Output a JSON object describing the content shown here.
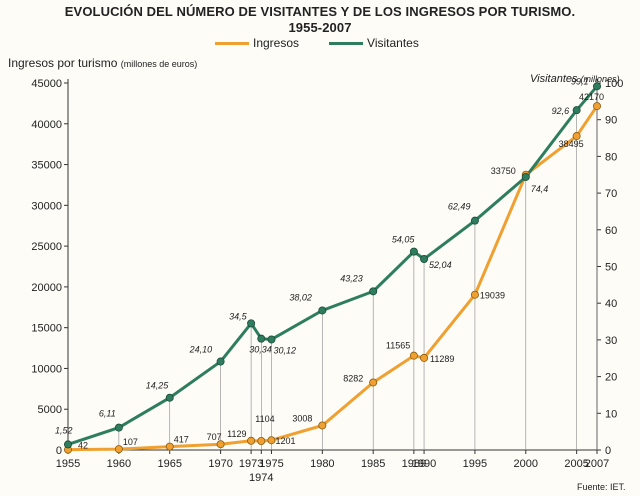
{
  "title_line1": "EVOLUCIÓN DEL NÚMERO DE VISITANTES Y DE LOS INGRESOS POR TURISMO.",
  "title_line2": "1955-2007",
  "legend": {
    "ingresos": "Ingresos",
    "visitantes": "Visitantes"
  },
  "y_left_label": "Ingresos por turismo",
  "y_left_unit": "(millones de euros)",
  "y_right_label": "Visitantes",
  "y_right_unit": "(millones)",
  "source": "Fuente: IET.",
  "colors": {
    "ingresos": "#f0a030",
    "visitantes": "#2e7d5e",
    "grid": "#555555"
  },
  "chart_data": {
    "type": "line",
    "x": [
      1955,
      1960,
      1965,
      1970,
      1973,
      1974,
      1975,
      1980,
      1985,
      1989,
      1990,
      1995,
      2000,
      2005,
      2007
    ],
    "x_tick_labels": [
      "1955",
      "1960",
      "1965",
      "1970",
      "1973",
      "1974",
      "1975",
      "1980",
      "1985",
      "1989",
      "1990",
      "1995",
      "2000",
      "2005",
      "2007"
    ],
    "ylim_left": [
      0,
      45000
    ],
    "yticks_left": [
      0,
      5000,
      10000,
      15000,
      20000,
      25000,
      30000,
      35000,
      40000,
      45000
    ],
    "ylim_right": [
      0,
      100
    ],
    "yticks_right": [
      0,
      10,
      20,
      30,
      40,
      50,
      60,
      70,
      80,
      90,
      100
    ],
    "grid": false,
    "series": [
      {
        "name": "Ingresos",
        "axis": "left",
        "values": [
          42,
          107,
          417,
          707,
          1129,
          1104,
          1201,
          3008,
          8282,
          11565,
          11289,
          19039,
          33750,
          38495,
          42170
        ],
        "labels": [
          "42",
          "107",
          "417",
          "707",
          "1129",
          "1104",
          "1201",
          "3008",
          "8282",
          "11565",
          "11289",
          "19039",
          "33750",
          "38495",
          "42170"
        ]
      },
      {
        "name": "Visitantes",
        "axis": "right",
        "values": [
          1.52,
          6.11,
          14.25,
          24.1,
          34.5,
          30.34,
          30.12,
          38.02,
          43.23,
          54.05,
          52.04,
          62.49,
          74.4,
          92.6,
          99.1
        ],
        "labels": [
          "1,52",
          "6,11",
          "14,25",
          "24,10",
          "34,5",
          "30,34",
          "30,12",
          "38,02",
          "43,23",
          "54,05",
          "52,04",
          "62,49",
          "74,4",
          "92,6",
          "99,1"
        ]
      }
    ]
  }
}
